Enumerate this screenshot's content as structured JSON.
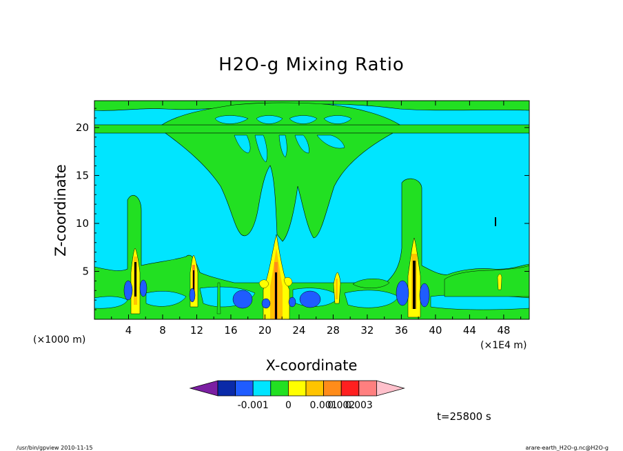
{
  "chart_data": {
    "type": "heatmap",
    "title": "H2O-g Mixing Ratio",
    "xlabel": "X-coordinate",
    "ylabel": "Z-coordinate",
    "x_unit_label": "(×1000 m)",
    "x_unit_right": "(×1E4 m)",
    "xlim": [
      0,
      51
    ],
    "ylim": [
      0,
      22.8
    ],
    "x_ticks": [
      4,
      8,
      12,
      16,
      20,
      24,
      28,
      32,
      36,
      40,
      44,
      48
    ],
    "y_ticks": [
      5,
      10,
      15,
      20
    ],
    "colorbar": {
      "levels": [
        -0.001,
        0,
        0.001,
        0.002,
        0.003
      ],
      "tick_labels": [
        "-0.001",
        "0",
        "0.001",
        "0.002",
        "0.003"
      ],
      "colors": [
        "#7b1fa2",
        "#0a2aa8",
        "#1f5cff",
        "#00e5ff",
        "#22e022",
        "#ffff00",
        "#ffc400",
        "#ff8c1a",
        "#ff2020",
        "#ff7f7f",
        "#ffc0cb"
      ]
    },
    "field_regions": {
      "background": "#00e5ff",
      "green_layers": [
        {
          "z": [
            19.5,
            20.2
          ],
          "x": [
            0,
            51
          ]
        },
        {
          "z": [
            21.5,
            22.8
          ],
          "x": [
            0,
            51
          ]
        },
        {
          "z": [
            1.5,
            4.5
          ],
          "x": [
            0,
            51
          ]
        }
      ],
      "plume_columns_x": [
        4.8,
        11.8,
        21.5,
        28.5,
        37.8
      ],
      "blue_blobs": [
        {
          "x": 4.0,
          "z": 2.5
        },
        {
          "x": 11.4,
          "z": 2.3
        },
        {
          "x": 17.5,
          "z": 2.0
        },
        {
          "x": 25.2,
          "z": 2.0
        },
        {
          "x": 36.2,
          "z": 2.5
        },
        {
          "x": 39.2,
          "z": 2.8
        }
      ]
    },
    "time_label": "t=25800 s"
  },
  "footer": {
    "left": "/usr/bin/gpview   2010-11-15",
    "right": "arare-earth_H2O-g.nc@H2O-g"
  }
}
